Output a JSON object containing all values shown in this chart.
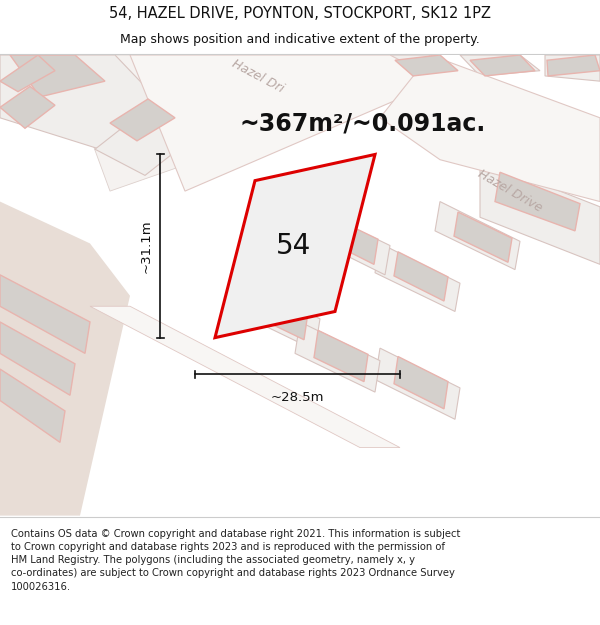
{
  "title_line1": "54, HAZEL DRIVE, POYNTON, STOCKPORT, SK12 1PZ",
  "title_line2": "Map shows position and indicative extent of the property.",
  "area_text": "~367m²/~0.091ac.",
  "number_label": "54",
  "dim_width": "~28.5m",
  "dim_height": "~31.1m",
  "road_label_top": "Hazel Dri",
  "road_label_right": "Hazel Drive",
  "bg_color": "#f2ece6",
  "map_bg": "#ede8e2",
  "plot_fill": "#e8e8e8",
  "plot_outline": "#dd0000",
  "road_fill": "#f8f6f4",
  "parcel_fill": "#e0deda",
  "parcel_outline": "#c8b8b4",
  "building_fill": "#d4d0cc",
  "building_outline": "#e8b4ae",
  "footer_text": "Contains OS data © Crown copyright and database right 2021. This information is subject to Crown copyright and database rights 2023 and is reproduced with the permission of HM Land Registry. The polygons (including the associated geometry, namely x, y co-ordinates) are subject to Crown copyright and database rights 2023 Ordnance Survey 100026316.",
  "footer_fontsize": 7.2,
  "title_fontsize": 10.5,
  "subtitle_fontsize": 9,
  "area_fontsize": 17,
  "number_fontsize": 20,
  "dim_fontsize": 9.5,
  "road_label_fontsize": 9,
  "sep_line_color": "#cccccc",
  "dim_color": "#111111",
  "text_color": "#111111",
  "road_text_color": "#b8a8a4"
}
